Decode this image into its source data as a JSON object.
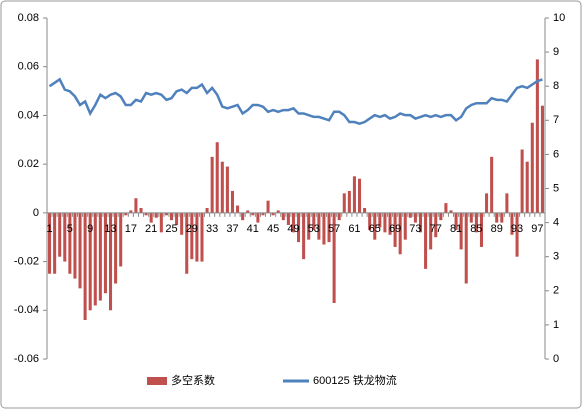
{
  "chart_data": {
    "type": "bar",
    "categories": [
      "1",
      null,
      null,
      null,
      "5",
      null,
      null,
      null,
      "9",
      null,
      null,
      null,
      "13",
      null,
      null,
      null,
      "17",
      null,
      null,
      null,
      "21",
      null,
      null,
      null,
      "25",
      null,
      null,
      null,
      "29",
      null,
      null,
      null,
      "33",
      null,
      null,
      null,
      "37",
      null,
      null,
      null,
      "41",
      null,
      null,
      null,
      "45",
      null,
      null,
      null,
      "49",
      null,
      null,
      null,
      "53",
      null,
      null,
      null,
      "57",
      null,
      null,
      null,
      "61",
      null,
      null,
      null,
      "65",
      null,
      null,
      null,
      "69",
      null,
      null,
      null,
      "73",
      null,
      null,
      null,
      "77",
      null,
      null,
      null,
      "81",
      null,
      null,
      null,
      "85",
      null,
      null,
      null,
      "89",
      null,
      null,
      null,
      "93",
      null,
      null,
      null,
      "97",
      null
    ],
    "series": [
      {
        "name": "多空系数",
        "color": "#c0504d",
        "type": "bar",
        "values": [
          -0.025,
          -0.025,
          -0.018,
          -0.02,
          -0.025,
          -0.027,
          -0.031,
          -0.044,
          -0.04,
          -0.038,
          -0.036,
          -0.033,
          -0.04,
          -0.029,
          -0.022,
          -0.001,
          0.001,
          0.006,
          0.002,
          -0.001,
          -0.004,
          -0.002,
          -0.008,
          -0.001,
          -0.003,
          -0.005,
          -0.009,
          -0.025,
          -0.019,
          -0.02,
          -0.02,
          0.002,
          0.023,
          0.029,
          0.021,
          0.019,
          0.009,
          0.003,
          -0.003,
          0.001,
          -0.001,
          -0.004,
          -0.001,
          0.005,
          -0.001,
          0.001,
          -0.003,
          -0.005,
          -0.008,
          -0.012,
          -0.019,
          -0.011,
          -0.007,
          -0.011,
          -0.013,
          -0.012,
          -0.037,
          -0.003,
          0.008,
          0.009,
          0.015,
          0.014,
          0.002,
          -0.007,
          -0.011,
          -0.006,
          -0.008,
          -0.009,
          -0.014,
          -0.017,
          -0.011,
          -0.002,
          -0.004,
          -0.008,
          -0.023,
          -0.015,
          -0.01,
          -0.003,
          0.004,
          0.001,
          -0.007,
          -0.015,
          -0.029,
          -0.004,
          -0.008,
          -0.014,
          0.008,
          0.023,
          -0.004,
          -0.004,
          0.008,
          -0.009,
          -0.018,
          0.026,
          0.021,
          0.037,
          0.063,
          0.044
        ]
      },
      {
        "name": "600125 铁龙物流",
        "color": "#4f81bd",
        "type": "line",
        "axis": "y2",
        "values": [
          8.0,
          8.1,
          8.2,
          7.9,
          7.85,
          7.7,
          7.45,
          7.55,
          7.2,
          7.45,
          7.75,
          7.65,
          7.75,
          7.8,
          7.7,
          7.45,
          7.45,
          7.6,
          7.55,
          7.8,
          7.75,
          7.8,
          7.75,
          7.6,
          7.65,
          7.85,
          7.9,
          7.8,
          7.95,
          7.95,
          8.05,
          7.8,
          7.95,
          7.75,
          7.4,
          7.35,
          7.4,
          7.45,
          7.2,
          7.3,
          7.45,
          7.45,
          7.4,
          7.25,
          7.3,
          7.25,
          7.3,
          7.3,
          7.35,
          7.2,
          7.2,
          7.15,
          7.1,
          7.1,
          7.05,
          7.0,
          7.25,
          7.25,
          7.15,
          6.95,
          6.95,
          6.9,
          6.95,
          7.05,
          7.15,
          7.1,
          7.15,
          7.05,
          7.1,
          7.2,
          7.15,
          7.15,
          7.05,
          7.1,
          7.15,
          7.1,
          7.15,
          7.1,
          7.15,
          7.15,
          7.0,
          7.1,
          7.35,
          7.45,
          7.5,
          7.5,
          7.5,
          7.65,
          7.6,
          7.6,
          7.55,
          7.75,
          7.95,
          8.0,
          7.95,
          8.05,
          8.15,
          8.2
        ]
      }
    ],
    "ylim": [
      -0.06,
      0.08
    ],
    "yticks": [
      -0.06,
      -0.04,
      -0.02,
      0,
      0.02,
      0.04,
      0.06,
      0.08
    ],
    "y2lim": [
      0,
      10
    ],
    "y2ticks": [
      0,
      1,
      2,
      3,
      4,
      5,
      6,
      7,
      8,
      9,
      10
    ],
    "grid": false,
    "legend": "bottom"
  }
}
